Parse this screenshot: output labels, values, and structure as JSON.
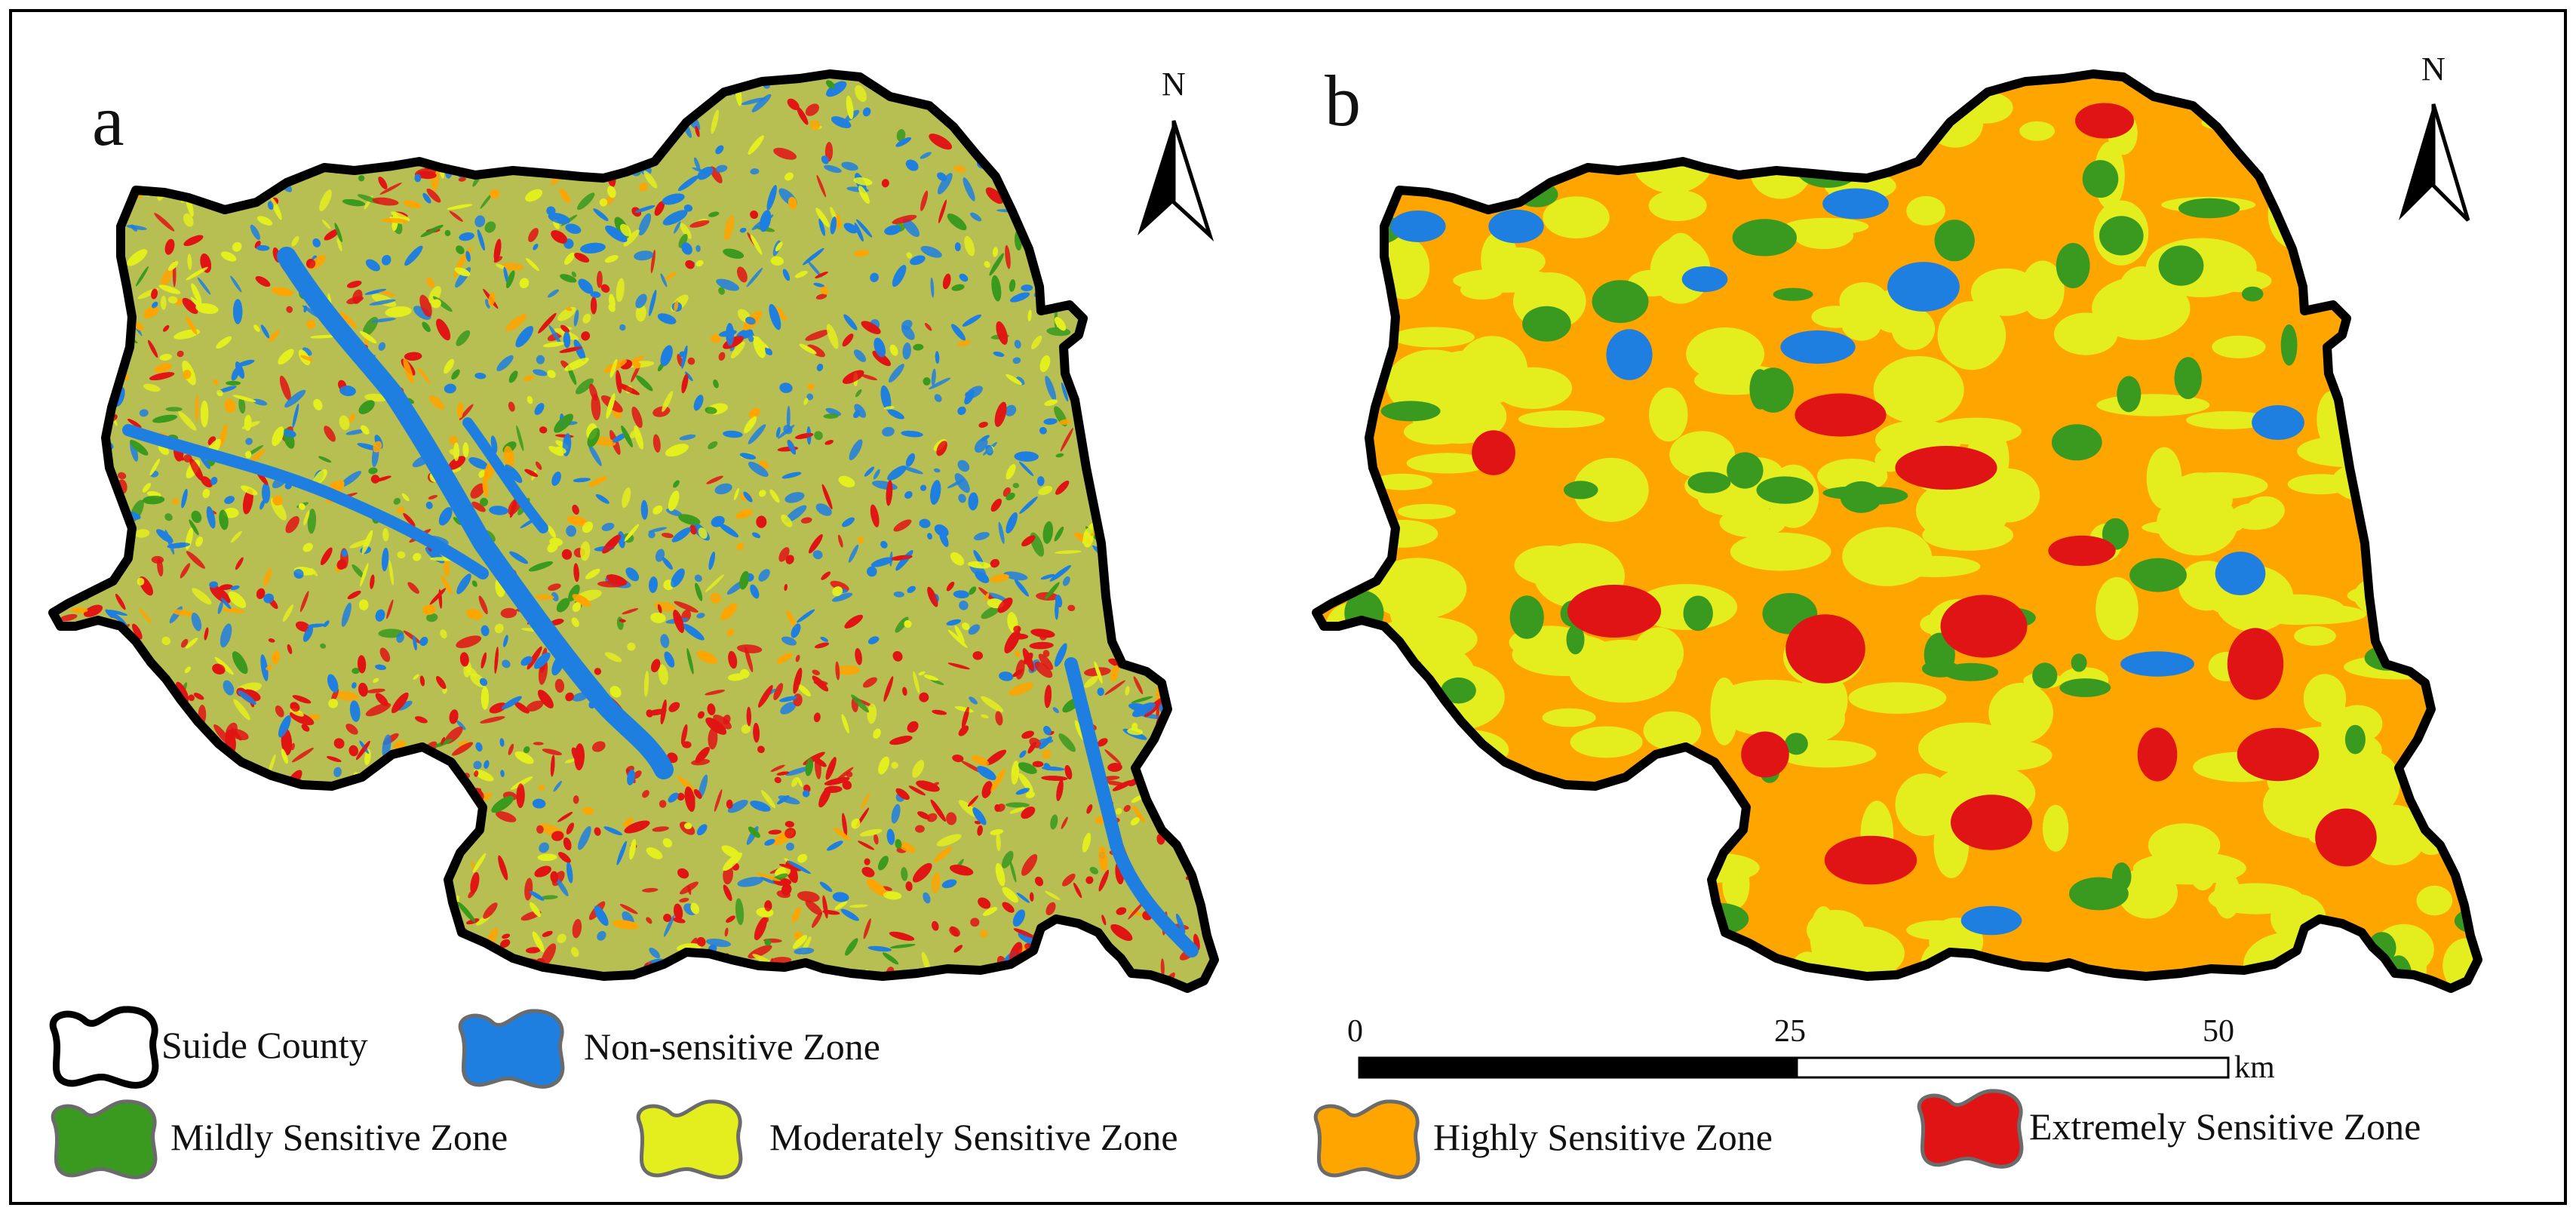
{
  "panels": [
    {
      "label": "a",
      "north_label": "N"
    },
    {
      "label": "b",
      "north_label": "N"
    }
  ],
  "legend": {
    "items": [
      {
        "label": "Suide County",
        "color": "#ffffff",
        "kind": "boundary"
      },
      {
        "label": "Non-sensitive Zone",
        "color": "#1f7fe0",
        "kind": "zone"
      },
      {
        "label": "Mildly Sensitive Zone",
        "color": "#3a9a1f",
        "kind": "zone"
      },
      {
        "label": "Moderately Sensitive Zone",
        "color": "#e4ee1e",
        "kind": "zone"
      },
      {
        "label": "Highly Sensitive Zone",
        "color": "#ffa500",
        "kind": "zone"
      },
      {
        "label": "Extremely Sensitive Zone",
        "color": "#e01414",
        "kind": "zone"
      }
    ]
  },
  "scale_bar": {
    "ticks": [
      "0",
      "25",
      "50"
    ],
    "unit": "km"
  },
  "colors": {
    "non_sensitive": "#1f7fe0",
    "mildly": "#3a9a1f",
    "moderately": "#e4ee1e",
    "highly": "#ffa500",
    "extremely": "#e01414",
    "boundary": "#000000"
  }
}
